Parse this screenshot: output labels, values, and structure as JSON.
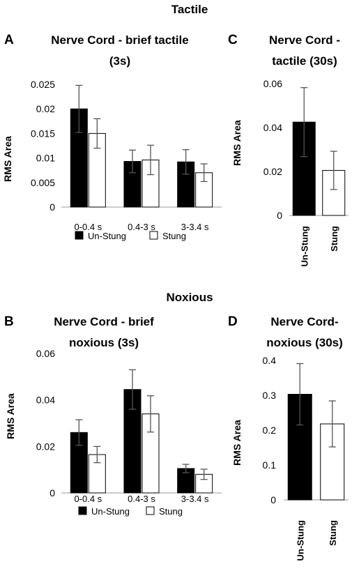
{
  "sections": {
    "tactile": "Tactile",
    "noxious": "Noxious"
  },
  "chart_data": [
    {
      "panel": "A",
      "type": "bar",
      "title_lines": [
        "Nerve Cord - brief tactile",
        "(3s)"
      ],
      "ylabel": "RMS Area",
      "ylim": [
        0,
        0.025
      ],
      "yticks": [
        0,
        0.005,
        0.01,
        0.015,
        0.02,
        0.025
      ],
      "ytick_labels": [
        "0",
        "0.005",
        "0.01",
        "0.015",
        "0.02",
        "0.025"
      ],
      "categories": [
        "0-0.4 s",
        "0.4-3 s",
        "3-3.4 s"
      ],
      "series": [
        {
          "name": "Un-Stung",
          "color": "#000000",
          "values": [
            0.02,
            0.0093,
            0.0092
          ],
          "errors": [
            0.0048,
            0.0023,
            0.0025
          ]
        },
        {
          "name": "Stung",
          "color": "#ffffff",
          "values": [
            0.015,
            0.0096,
            0.007
          ],
          "errors": [
            0.003,
            0.003,
            0.0018
          ]
        }
      ],
      "legend": "bottom"
    },
    {
      "panel": "C",
      "type": "bar",
      "title_lines": [
        "Nerve Cord -",
        "tactile (30s)"
      ],
      "ylabel": "RMS Area",
      "ylim": [
        0,
        0.06
      ],
      "yticks": [
        0,
        0.02,
        0.04,
        0.06
      ],
      "ytick_labels": [
        "0",
        "0.02",
        "0.04",
        "0.06"
      ],
      "categories": [
        "Un-Stung",
        "Stung"
      ],
      "series": [
        {
          "name": "",
          "colors": [
            "#000000",
            "#ffffff"
          ],
          "values": [
            0.0425,
            0.0205
          ],
          "errors": [
            0.0157,
            0.0087
          ]
        }
      ]
    },
    {
      "panel": "B",
      "type": "bar",
      "title_lines": [
        "Nerve Cord - brief",
        "noxious (3s)"
      ],
      "ylabel": "RMS Area",
      "ylim": [
        0,
        0.06
      ],
      "yticks": [
        0,
        0.02,
        0.04,
        0.06
      ],
      "ytick_labels": [
        "0",
        "0.02",
        "0.04",
        "0.06"
      ],
      "categories": [
        "0-0.4 s",
        "0.4-3 s",
        "3-3.4 s"
      ],
      "series": [
        {
          "name": "Un-Stung",
          "color": "#000000",
          "values": [
            0.026,
            0.0445,
            0.0105
          ],
          "errors": [
            0.0055,
            0.0085,
            0.0018
          ]
        },
        {
          "name": "Stung",
          "color": "#ffffff",
          "values": [
            0.0165,
            0.034,
            0.008
          ],
          "errors": [
            0.0035,
            0.0078,
            0.0022
          ]
        }
      ],
      "legend": "bottom"
    },
    {
      "panel": "D",
      "type": "bar",
      "title_lines": [
        "Nerve Cord-",
        "noxious (30s)"
      ],
      "ylabel": "RMS Area",
      "ylim": [
        0,
        0.4
      ],
      "yticks": [
        0,
        0.1,
        0.2,
        0.3,
        0.4
      ],
      "ytick_labels": [
        "0",
        "0.1",
        "0.2",
        "0.3",
        "0.4"
      ],
      "categories": [
        "Un-Stung",
        "Stung"
      ],
      "series": [
        {
          "name": "",
          "colors": [
            "#000000",
            "#ffffff"
          ],
          "values": [
            0.303,
            0.218
          ],
          "errors": [
            0.088,
            0.066
          ]
        }
      ]
    }
  ]
}
